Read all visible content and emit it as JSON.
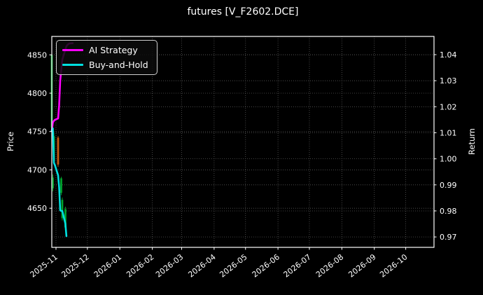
{
  "title": "futures [V_F2602.DCE]",
  "colors": {
    "background": "#000000",
    "text": "#ffffff",
    "grid": "#565656",
    "spine": "#ffffff",
    "ai_strategy": "#ff00ff",
    "buy_and_hold": "#00e0e0",
    "candle_up": "#00a32e",
    "candle_down": "#c55a11"
  },
  "chart_data": {
    "type": "line",
    "title": "futures [V_F2602.DCE]",
    "background": "#000000",
    "grid": "dotted",
    "legend_position": "upper left",
    "x_axis": {
      "tick_labels": [
        "2025-11",
        "2025-12",
        "2026-01",
        "2026-02",
        "2026-03",
        "2026-04",
        "2026-05",
        "2026-06",
        "2026-07",
        "2026-08",
        "2026-09",
        "2026-10"
      ],
      "range": [
        "2025-10-28",
        "2026-10-28"
      ]
    },
    "left_axis": {
      "label": "Price",
      "ticks": [
        4850,
        4800,
        4750,
        4700,
        4650
      ],
      "range": [
        4599,
        4874
      ]
    },
    "right_axis": {
      "label": "Return",
      "ticks": [
        1.04,
        1.03,
        1.02,
        1.01,
        1.0,
        0.99,
        0.98,
        0.97
      ],
      "range": [
        0.966,
        1.047
      ]
    },
    "series": [
      {
        "name": "AI Strategy",
        "axis": "right",
        "color": "#ff00ff",
        "points": [
          [
            "2025-10-28",
            1.0107
          ],
          [
            "2025-10-29",
            1.0139
          ],
          [
            "2025-10-30",
            1.0146
          ],
          [
            "2025-10-31",
            1.015
          ],
          [
            "2025-11-03",
            1.0155
          ],
          [
            "2025-11-04",
            1.0206
          ],
          [
            "2025-11-05",
            1.03
          ],
          [
            "2025-11-06",
            1.0341
          ],
          [
            "2025-11-07",
            1.0381
          ],
          [
            "2025-11-10",
            1.042
          ],
          [
            "2025-11-11",
            1.0432
          ],
          [
            "2025-11-12",
            1.0438
          ],
          [
            "2025-11-13",
            1.0441
          ],
          [
            "2025-11-14",
            1.0443
          ],
          [
            "2025-11-17",
            1.0444
          ]
        ]
      },
      {
        "name": "Buy-and-Hold",
        "axis": "right",
        "color": "#00e0e0",
        "points": [
          [
            "2025-10-28",
            1.0109
          ],
          [
            "2025-10-29",
            1.0117
          ],
          [
            "2025-10-30",
            0.9985
          ],
          [
            "2025-10-31",
            0.9975
          ],
          [
            "2025-11-03",
            0.9937
          ],
          [
            "2025-11-04",
            0.989
          ],
          [
            "2025-11-05",
            0.9802
          ],
          [
            "2025-11-06",
            0.98
          ],
          [
            "2025-11-07",
            0.98
          ],
          [
            "2025-11-10",
            0.9751
          ],
          [
            "2025-11-11",
            0.9703
          ]
        ]
      }
    ],
    "candles": {
      "axis": "left",
      "up_color": "#00a32e",
      "down_color": "#c55a11",
      "data": [
        {
          "date": "2025-10-28",
          "open": 4755,
          "high": 4862,
          "low": 4745,
          "close": 4850
        },
        {
          "date": "2025-10-29",
          "open": 4676,
          "high": 4694,
          "low": 4672,
          "close": 4690
        },
        {
          "date": "2025-10-30",
          "open": 4712,
          "high": 4748,
          "low": 4707,
          "close": 4744
        },
        {
          "date": "2025-11-03",
          "open": 4742,
          "high": 4744,
          "low": 4704,
          "close": 4707
        },
        {
          "date": "2025-11-06",
          "open": 4670,
          "high": 4691,
          "low": 4667,
          "close": 4689
        },
        {
          "date": "2025-11-07",
          "open": 4637,
          "high": 4664,
          "low": 4634,
          "close": 4661
        },
        {
          "date": "2025-11-10",
          "open": 4625,
          "high": 4652,
          "low": 4622,
          "close": 4649
        }
      ]
    }
  }
}
